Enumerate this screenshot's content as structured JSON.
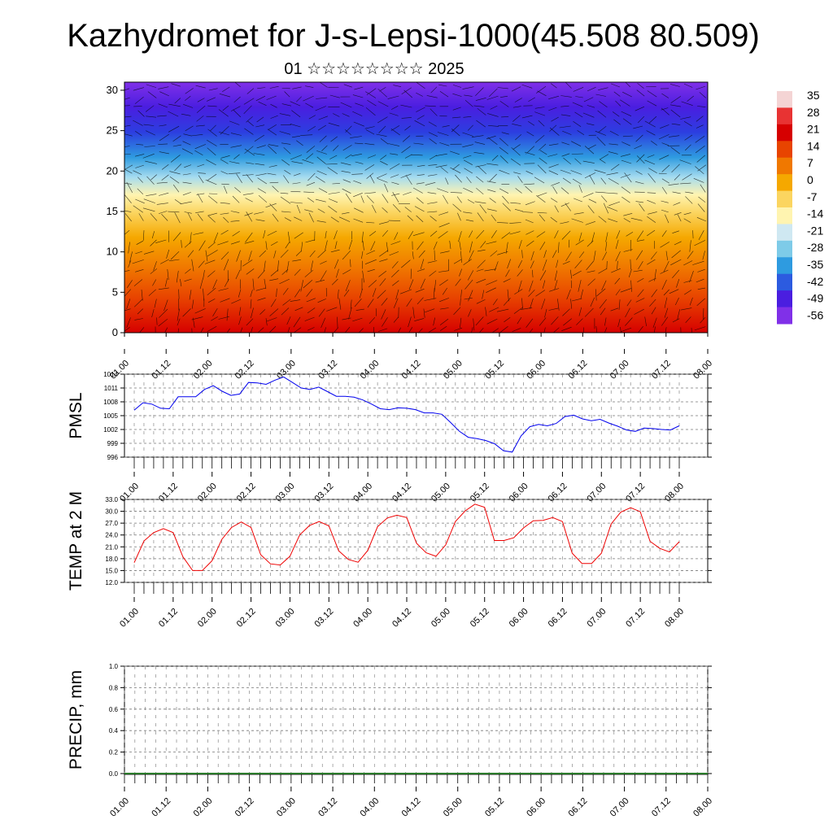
{
  "header": {
    "title": "Kazhydromet for J-s-Lepsi-1000(45.508 80.509)",
    "subtitle": "01 ☆☆☆☆☆☆☆☆ 2025"
  },
  "time_axis": [
    "01.00",
    "01.12",
    "02.00",
    "02.12",
    "03.00",
    "03.12",
    "04.00",
    "04.12",
    "05.00",
    "05.12",
    "06.00",
    "06.12",
    "07.00",
    "07.12",
    "08.00"
  ],
  "colors": {
    "pmsl_line": "#0000ee",
    "temp_line": "#ee0000",
    "wind_arrows": "#000000",
    "colorbar": [
      "#f4d4d4",
      "#e83333",
      "#d60000",
      "#e84400",
      "#f07800",
      "#f5a800",
      "#fbd560",
      "#fff4b0",
      "#cfe8f2",
      "#7ecbe8",
      "#2e9be0",
      "#2c5be0",
      "#4a1ee0",
      "#8030e8"
    ]
  },
  "chart_data": [
    {
      "type": "heatmap",
      "title": "",
      "xlabel": "",
      "ylabel": "",
      "x_ticks": [
        "01.00",
        "01.12",
        "02.00",
        "02.12",
        "03.00",
        "03.12",
        "04.00",
        "04.12",
        "05.00",
        "05.12",
        "06.00",
        "06.12",
        "07.00",
        "07.12",
        "08.00"
      ],
      "y_ticks": [
        0,
        5,
        10,
        15,
        20,
        25,
        30
      ],
      "ylim": [
        0,
        31
      ],
      "colorbar_labels": [
        "35",
        "28",
        "21",
        "14",
        "7",
        "0",
        "-7",
        "-14",
        "-21",
        "-28",
        "-35",
        "-42",
        "-49",
        "-56"
      ],
      "overlay": "wind vectors"
    },
    {
      "type": "line",
      "ylabel": "PMSL",
      "ylim": [
        996,
        1014
      ],
      "y_ticks": [
        "996",
        "999",
        "1002",
        "1005",
        "1008",
        "1011",
        "1014"
      ],
      "x_ticks": [
        "01.00",
        "01.12",
        "02.00",
        "02.12",
        "03.00",
        "03.12",
        "04.00",
        "04.12",
        "05.00",
        "05.12",
        "06.00",
        "06.12",
        "07.00",
        "07.12",
        "08.00"
      ],
      "series": [
        {
          "values": [
            1006.2,
            1007.8,
            1007.5,
            1006.6,
            1006.5,
            1009.1,
            1009.1,
            1009.1,
            1010.7,
            1011.5,
            1010.3,
            1009.4,
            1009.7,
            1012.2,
            1012.1,
            1011.8,
            1012.7,
            1013.4,
            1012.2,
            1011.0,
            1010.7,
            1011.2,
            1010.2,
            1009.2,
            1009.2,
            1009.0,
            1008.4,
            1007.5,
            1006.5,
            1006.3,
            1006.7,
            1006.6,
            1006.3,
            1005.6,
            1005.6,
            1005.3,
            1003.5,
            1001.6,
            1000.3,
            1000.0,
            999.6,
            998.9,
            997.4,
            997.1,
            1000.6,
            1002.6,
            1003.1,
            1002.8,
            1003.3,
            1004.8,
            1005.1,
            1004.3,
            1003.9,
            1004.2,
            1003.4,
            1002.7,
            1001.9,
            1001.6,
            1002.3,
            1002.2,
            1002.0,
            1001.9,
            1002.8
          ]
        }
      ]
    },
    {
      "type": "line",
      "ylabel": "TEMP at 2 M",
      "ylim": [
        12,
        33
      ],
      "y_ticks": [
        "12.0",
        "15.0",
        "18.0",
        "21.0",
        "24.0",
        "27.0",
        "30.0",
        "33.0"
      ],
      "x_ticks": [
        "01.00",
        "01.12",
        "02.00",
        "02.12",
        "03.00",
        "03.12",
        "04.00",
        "04.12",
        "05.00",
        "05.12",
        "06.00",
        "06.12",
        "07.00",
        "07.12",
        "08.00"
      ],
      "series": [
        {
          "values": [
            17.0,
            22.5,
            24.6,
            25.6,
            24.6,
            18.5,
            15.0,
            15.0,
            17.5,
            22.9,
            25.9,
            27.3,
            25.9,
            19.0,
            16.7,
            16.4,
            18.6,
            24.0,
            26.4,
            27.4,
            26.3,
            20.0,
            17.8,
            17.1,
            20.1,
            26.1,
            28.3,
            29.0,
            28.4,
            21.9,
            19.5,
            18.6,
            21.5,
            27.4,
            30.1,
            31.8,
            31.0,
            22.6,
            22.6,
            23.3,
            25.8,
            27.6,
            27.7,
            28.4,
            27.4,
            19.4,
            16.8,
            16.8,
            19.4,
            26.8,
            29.8,
            30.9,
            29.9,
            22.4,
            20.6,
            19.7,
            22.3
          ]
        }
      ]
    },
    {
      "type": "bar",
      "ylabel": "PRECIP, mm",
      "ylim": [
        0,
        1
      ],
      "y_ticks": [
        "0.0",
        "0.2",
        "0.4",
        "0.6",
        "0.8",
        "1.0"
      ],
      "x_ticks": [
        "01.00",
        "01.12",
        "02.00",
        "02.12",
        "03.00",
        "03.12",
        "04.00",
        "04.12",
        "05.00",
        "05.12",
        "06.00",
        "06.12",
        "07.00",
        "07.12",
        "08.00"
      ],
      "values": []
    }
  ]
}
